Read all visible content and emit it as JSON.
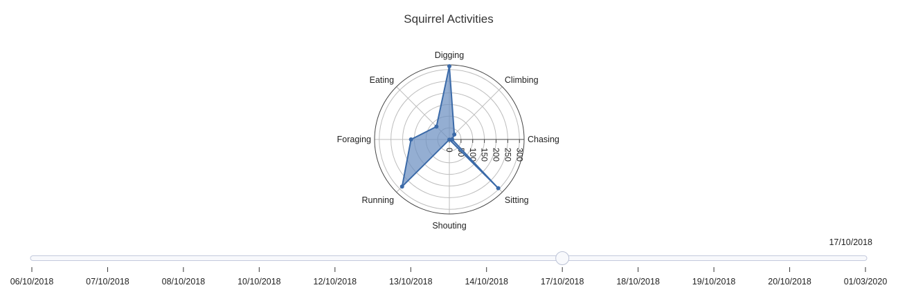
{
  "chart_data": {
    "type": "radar",
    "title": "Squirrel Activities",
    "axes": [
      "Digging",
      "Climbing",
      "Chasing",
      "Sitting",
      "Shouting",
      "Running",
      "Foraging",
      "Eating"
    ],
    "series": [
      {
        "values": [
          314,
          30,
          12,
          296,
          1,
          286,
          164,
          78
        ]
      }
    ],
    "radial_range": [
      0,
      320
    ],
    "radial_ticks": [
      0,
      50,
      100,
      150,
      200,
      250,
      300
    ],
    "colors": {
      "line": "#3b6aa8",
      "fill": "#6b8fc0",
      "grid": "#bdbdbd"
    }
  },
  "slider": {
    "current_label": "17/10/2018",
    "current_index": 7,
    "dates": [
      "06/10/2018",
      "07/10/2018",
      "08/10/2018",
      "10/10/2018",
      "12/10/2018",
      "13/10/2018",
      "14/10/2018",
      "17/10/2018",
      "18/10/2018",
      "19/10/2018",
      "20/10/2018",
      "01/03/2020"
    ]
  }
}
